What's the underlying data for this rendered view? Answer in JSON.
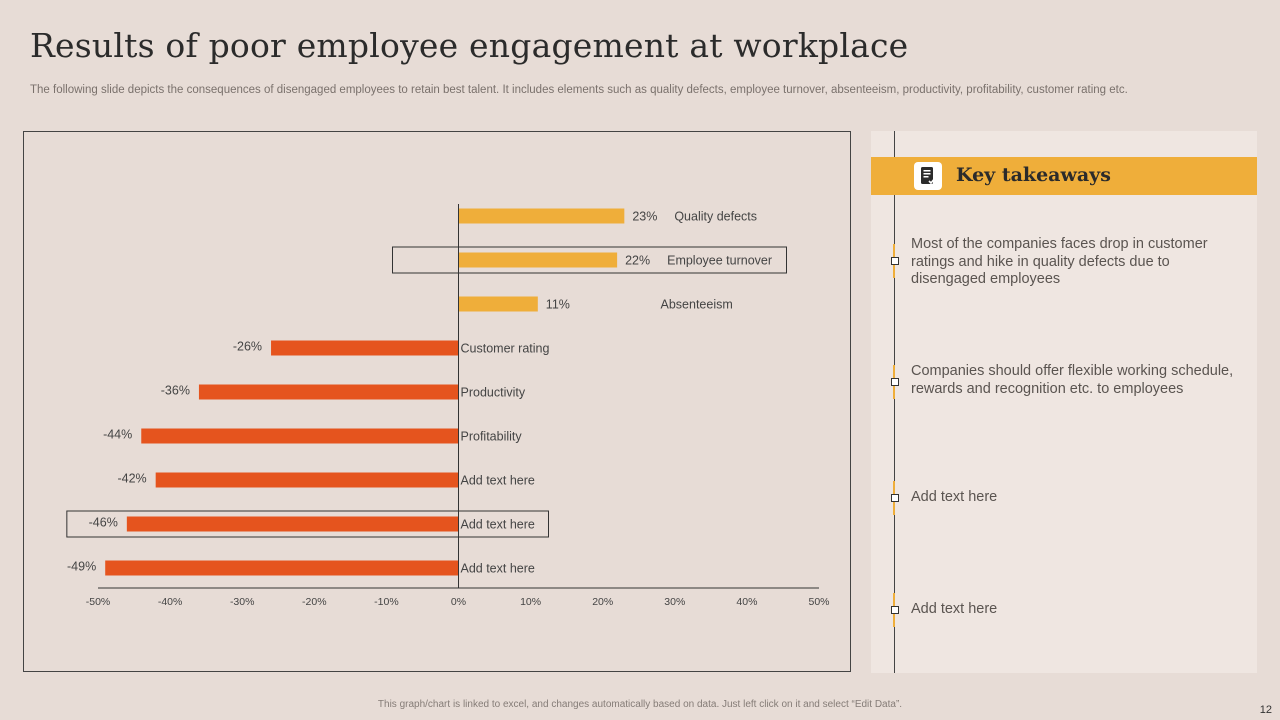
{
  "slide": {
    "title": "Results of  poor employee engagement at workplace",
    "subtitle": "The following slide depicts the consequences of disengaged employees to retain best talent. It includes elements such as quality defects, employee turnover, absenteeism, productivity, profitability, customer rating etc.",
    "footnote": "This graph/chart is linked to excel, and changes automatically based on data. Just left click on it and select “Edit Data”.",
    "page_number": "12"
  },
  "colors": {
    "positive": "#efae3a",
    "negative": "#e5541e",
    "axis": "#333333",
    "background": "#e7dcd6"
  },
  "chart_data": {
    "type": "bar",
    "orientation": "horizontal",
    "categories": [
      "Quality defects",
      "Employee turnover",
      "Absenteeism",
      "Customer rating",
      "Productivity",
      "Profitability",
      "Add text here",
      "Add text here",
      "Add text here"
    ],
    "values": [
      23,
      22,
      11,
      -26,
      -36,
      -44,
      -42,
      -46,
      -49
    ],
    "data_labels": [
      "23%",
      "22%",
      "11%",
      "-26%",
      "-36%",
      "-44%",
      "-42%",
      "-46%",
      "-49%"
    ],
    "xlim": [
      -50,
      50
    ],
    "xticks": [
      -50,
      -40,
      -30,
      -20,
      -10,
      0,
      10,
      20,
      30,
      40,
      50
    ],
    "xtick_labels": [
      "-50%",
      "-40%",
      "-30%",
      "-20%",
      "-10%",
      "0%",
      "10%",
      "20%",
      "30%",
      "40%",
      "50%"
    ],
    "highlighted": [
      1,
      7
    ],
    "grid": false
  },
  "takeaways": {
    "header_icon": "document-icon",
    "title": "Key takeaways",
    "items": [
      {
        "text": "Most of the companies faces drop in customer ratings and hike in quality defects due to disengaged employees"
      },
      {
        "text": "Companies should offer flexible working schedule, rewards and recognition etc. to employees"
      },
      {
        "text": "Add text here"
      },
      {
        "text": "Add text here"
      }
    ]
  }
}
